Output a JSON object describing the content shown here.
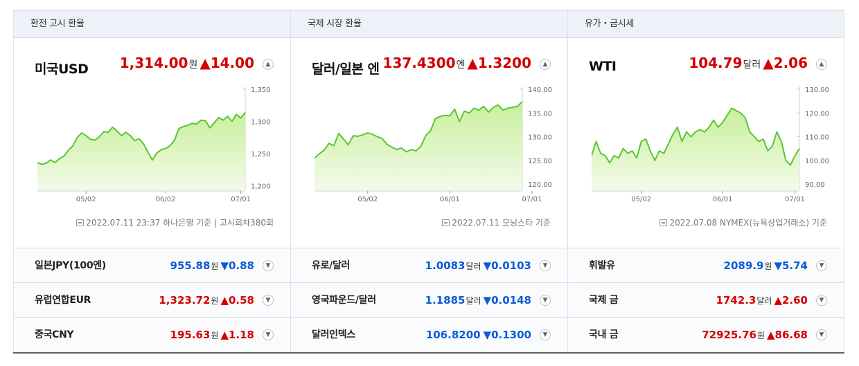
{
  "panels": [
    {
      "header": "환전 고시 환율",
      "title": "미국USD",
      "price": "1,314.00",
      "unit": "원",
      "change": "▲14.00",
      "direction": "up",
      "note": "2022.07.11 23:37 하나은행 기준 | 고시회차380회",
      "chart_data": {
        "type": "area",
        "y_ticks": [
          "1,350",
          "1,300",
          "1,250",
          "1,200"
        ],
        "ylim": [
          1195,
          1350
        ],
        "x_ticks": [
          "05/02",
          "06/02",
          "07/01"
        ],
        "x_tick_index": [
          11,
          29,
          46
        ],
        "values": [
          1236,
          1233,
          1235,
          1240,
          1236,
          1242,
          1246,
          1255,
          1262,
          1275,
          1282,
          1278,
          1272,
          1271,
          1276,
          1284,
          1283,
          1291,
          1285,
          1278,
          1283,
          1278,
          1270,
          1273,
          1265,
          1252,
          1240,
          1251,
          1256,
          1258,
          1262,
          1271,
          1289,
          1292,
          1294,
          1297,
          1296,
          1302,
          1301,
          1290,
          1298,
          1306,
          1302,
          1308,
          1300,
          1311,
          1305,
          1314
        ]
      },
      "rows": [
        {
          "label": "일본JPY(100엔)",
          "value": "955.88",
          "unit": "원",
          "change": "▼0.88",
          "direction": "down"
        },
        {
          "label": "유럽연합EUR",
          "value": "1,323.72",
          "unit": "원",
          "change": "▲0.58",
          "direction": "up"
        },
        {
          "label": "중국CNY",
          "value": "195.63",
          "unit": "원",
          "change": "▲1.18",
          "direction": "up"
        }
      ]
    },
    {
      "header": "국제 시장 환율",
      "title": "달러/일본 엔",
      "price": "137.4300",
      "unit": "엔",
      "change": "▲1.3200",
      "direction": "up",
      "note": "2022.07.11 모닝스타 기준",
      "chart_data": {
        "type": "area",
        "y_ticks": [
          "140.00",
          "135.00",
          "130.00",
          "125.00",
          "120.00"
        ],
        "ylim": [
          119,
          140
        ],
        "x_ticks": [
          "05/02",
          "06/01",
          "07/01"
        ],
        "x_tick_index": [
          11,
          28,
          45
        ],
        "values": [
          125.5,
          126.4,
          127.2,
          128.6,
          128.1,
          130.7,
          129.5,
          128.3,
          130.2,
          130.1,
          130.4,
          130.8,
          130.5,
          130.0,
          129.6,
          128.4,
          127.8,
          127.3,
          127.6,
          126.8,
          127.3,
          127.0,
          128.0,
          130.2,
          131.2,
          133.8,
          134.3,
          134.5,
          134.4,
          135.8,
          133.2,
          135.4,
          135.0,
          136.0,
          135.6,
          136.4,
          135.2,
          136.2,
          136.7,
          135.6,
          136.0,
          136.2,
          136.4,
          137.4
        ]
      },
      "rows": [
        {
          "label": "유로/달러",
          "value": "1.0083",
          "unit": "달러",
          "change": "▼0.0103",
          "direction": "down"
        },
        {
          "label": "영국파운드/달러",
          "value": "1.1885",
          "unit": "달러",
          "change": "▼0.0148",
          "direction": "down"
        },
        {
          "label": "달러인덱스",
          "value": "106.8200",
          "unit": "",
          "change": "▼0.1300",
          "direction": "down"
        }
      ]
    },
    {
      "header": "유가・금시세",
      "title": "WTI",
      "price": "104.79",
      "unit": "달러",
      "change": "▲2.06",
      "direction": "up",
      "note": "2022.07.08 NYMEX(뉴욕상업거래소) 기준",
      "chart_data": {
        "type": "area",
        "y_ticks": [
          "130.00",
          "120.00",
          "110.00",
          "100.00",
          "90.00"
        ],
        "ylim": [
          88,
          130
        ],
        "x_ticks": [
          "05/02",
          "06/01",
          "07/01"
        ],
        "x_tick_index": [
          11,
          29,
          45
        ],
        "values": [
          102,
          108,
          103,
          102,
          99,
          102,
          101,
          105,
          103,
          104,
          101,
          108,
          109,
          104,
          100,
          104,
          103,
          107,
          111,
          114,
          108,
          112,
          110,
          112,
          113,
          112,
          114,
          117,
          114,
          116,
          119,
          122,
          121,
          120,
          118,
          112,
          110,
          108,
          109,
          104,
          106,
          112,
          108,
          100,
          98,
          102,
          105
        ]
      },
      "rows": [
        {
          "label": "휘발유",
          "value": "2089.9",
          "unit": "원",
          "change": "▼5.74",
          "direction": "down"
        },
        {
          "label": "국제 금",
          "value": "1742.3",
          "unit": "달러",
          "change": "▲2.60",
          "direction": "up"
        },
        {
          "label": "국내 금",
          "value": "72925.76",
          "unit": "원",
          "change": "▲86.68",
          "direction": "up"
        }
      ]
    }
  ]
}
